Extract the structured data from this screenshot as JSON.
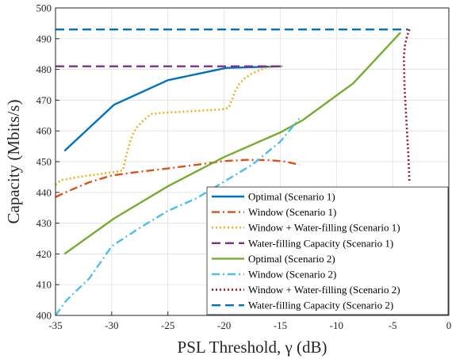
{
  "chart_data": {
    "type": "line",
    "xlabel": "PSL Threshold, γ (dB)",
    "ylabel": "Capacity (Mbits/s)",
    "xlim": [
      -35,
      0
    ],
    "ylim": [
      400,
      500
    ],
    "xticks": [
      "-35",
      "-30",
      "-25",
      "-20",
      "-15",
      "-10",
      "-5",
      "0"
    ],
    "yticks": [
      "400",
      "410",
      "420",
      "430",
      "440",
      "450",
      "460",
      "470",
      "480",
      "490",
      "500"
    ],
    "grid": true,
    "legend_position": "bottom-right",
    "series": [
      {
        "name": "Optimal (Scenario 1)",
        "color": "#0072BD",
        "dash": "solid",
        "x": [
          -34.2,
          -29.8,
          -25.0,
          -19.8,
          -14.8
        ],
        "y": [
          453.5,
          468.5,
          476.5,
          480.5,
          481.0
        ]
      },
      {
        "name": "Window (Scenario 1)",
        "color": "#D95319",
        "dash": "dashdot",
        "x": [
          -35.0,
          -33.5,
          -32.0,
          -30.0,
          -28.0,
          -25.0,
          -22.0,
          -20.0,
          -18.0,
          -16.0,
          -14.5,
          -13.3
        ],
        "y": [
          438.5,
          441.0,
          443.3,
          445.5,
          446.5,
          447.8,
          449.2,
          450.2,
          450.6,
          450.5,
          450.0,
          449.0
        ]
      },
      {
        "name": "Window + Water-filling (Scenario 1)",
        "color": "#EDB120",
        "dash": "dotted",
        "x": [
          -35.0,
          -34.5,
          -33.0,
          -31.0,
          -29.5,
          -29.0,
          -28.7,
          -28.4,
          -28.1,
          -27.8,
          -27.3,
          -26.5,
          -25.0,
          -22.5,
          -20.2,
          -19.6,
          -19.3,
          -19.0,
          -18.6,
          -18.2,
          -17.6,
          -17.0,
          -16.3,
          -15.4,
          -14.6
        ],
        "y": [
          442.5,
          444.0,
          445.0,
          446.0,
          446.8,
          447.2,
          452.0,
          456.0,
          459.0,
          461.0,
          463.0,
          465.5,
          466.0,
          466.5,
          467.0,
          467.5,
          470.0,
          473.0,
          475.5,
          477.0,
          478.5,
          479.5,
          480.5,
          481.0,
          481.0
        ]
      },
      {
        "name": "Water-filling Capacity (Scenario 1)",
        "color": "#7E2F8E",
        "dash": "dashed",
        "x": [
          -35.0,
          -14.8
        ],
        "y": [
          481.0,
          481.0
        ]
      },
      {
        "name": "Optimal (Scenario 2)",
        "color": "#77AC30",
        "dash": "solid",
        "x": [
          -34.2,
          -29.8,
          -25.0,
          -20.0,
          -15.0,
          -13.0,
          -8.5,
          -4.3
        ],
        "y": [
          420.0,
          431.5,
          442.0,
          451.5,
          459.5,
          463.5,
          475.5,
          492.0
        ]
      },
      {
        "name": "Window (Scenario 2)",
        "color": "#4DBEEE",
        "dash": "dashdot",
        "x": [
          -35.0,
          -34.0,
          -32.0,
          -30.0,
          -27.5,
          -25.0,
          -22.5,
          -20.0,
          -17.5,
          -15.0,
          -13.3
        ],
        "y": [
          400.0,
          405.0,
          412.0,
          422.5,
          428.5,
          434.0,
          438.0,
          443.5,
          449.0,
          456.5,
          464.0
        ]
      },
      {
        "name": "Window + Water-filling (Scenario 2)",
        "color": "#A2142F",
        "dash": "dotted",
        "x": [
          -3.5,
          -3.7,
          -3.9,
          -4.0,
          -3.95,
          -3.8,
          -3.6,
          -3.5
        ],
        "y": [
          493.0,
          491.0,
          488.0,
          484.0,
          475.0,
          465.0,
          452.0,
          443.0
        ]
      },
      {
        "name": "Water-filling Capacity (Scenario 2)",
        "color": "#0072BD",
        "dash": "dashed",
        "x": [
          -35.0,
          -3.6
        ],
        "y": [
          493.0,
          493.0
        ]
      }
    ]
  }
}
